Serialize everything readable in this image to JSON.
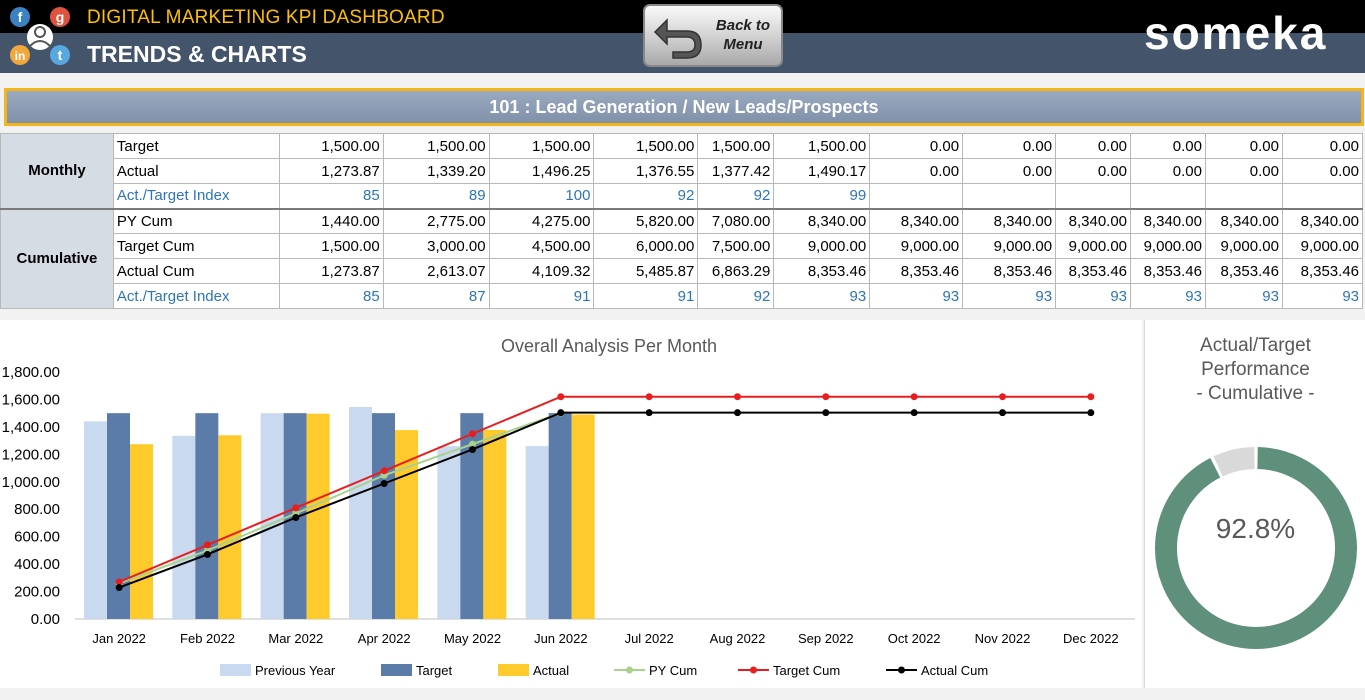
{
  "header": {
    "app_title": "DIGITAL MARKETING KPI DASHBOARD",
    "page_title": "TRENDS & CHARTS",
    "back_button": "Back to\nMenu",
    "brand": "someka",
    "logo_letters": [
      "f",
      "g",
      "in",
      "t"
    ]
  },
  "kpi_selector": "101 : Lead Generation / New Leads/Prospects",
  "table": {
    "groups": [
      "Monthly",
      "Cumulative"
    ],
    "monthly": [
      {
        "label": "Target",
        "values": [
          "1,500.00",
          "1,500.00",
          "1,500.00",
          "1,500.00",
          "1,500.00",
          "1,500.00",
          "0.00",
          "0.00",
          "0.00",
          "0.00",
          "0.00",
          "0.00"
        ]
      },
      {
        "label": "Actual",
        "values": [
          "1,273.87",
          "1,339.20",
          "1,496.25",
          "1,376.55",
          "1,377.42",
          "1,490.17",
          "0.00",
          "0.00",
          "0.00",
          "0.00",
          "0.00",
          "0.00"
        ]
      },
      {
        "label": "Act./Target Index",
        "values": [
          "85",
          "89",
          "100",
          "92",
          "92",
          "99",
          "",
          "",
          "",
          "",
          "",
          ""
        ]
      }
    ],
    "cumulative": [
      {
        "label": "PY Cum",
        "values": [
          "1,440.00",
          "2,775.00",
          "4,275.00",
          "5,820.00",
          "7,080.00",
          "8,340.00",
          "8,340.00",
          "8,340.00",
          "8,340.00",
          "8,340.00",
          "8,340.00",
          "8,340.00"
        ]
      },
      {
        "label": "Target Cum",
        "values": [
          "1,500.00",
          "3,000.00",
          "4,500.00",
          "6,000.00",
          "7,500.00",
          "9,000.00",
          "9,000.00",
          "9,000.00",
          "9,000.00",
          "9,000.00",
          "9,000.00",
          "9,000.00"
        ]
      },
      {
        "label": "Actual Cum",
        "values": [
          "1,273.87",
          "2,613.07",
          "4,109.32",
          "5,485.87",
          "6,863.29",
          "8,353.46",
          "8,353.46",
          "8,353.46",
          "8,353.46",
          "8,353.46",
          "8,353.46",
          "8,353.46"
        ]
      },
      {
        "label": "Act./Target Index",
        "values": [
          "85",
          "87",
          "91",
          "91",
          "92",
          "93",
          "93",
          "93",
          "93",
          "93",
          "93",
          "93"
        ]
      }
    ]
  },
  "chart_data": [
    {
      "type": "bar",
      "title": "Overall Analysis Per Month",
      "categories": [
        "Jan 2022",
        "Feb 2022",
        "Mar 2022",
        "Apr 2022",
        "May 2022",
        "Jun 2022",
        "Jul 2022",
        "Aug 2022",
        "Sep 2022",
        "Oct 2022",
        "Nov 2022",
        "Dec 2022"
      ],
      "ylim": [
        0,
        1800
      ],
      "yticks": [
        "0.00",
        "200.00",
        "400.00",
        "600.00",
        "800.00",
        "1,000.00",
        "1,200.00",
        "1,400.00",
        "1,600.00",
        "1,800.00"
      ],
      "series": [
        {
          "name": "Previous Year",
          "kind": "bar",
          "color": "#c9daf0",
          "values": [
            1440,
            1335,
            1500,
            1545,
            1260,
            1260,
            0,
            0,
            0,
            0,
            0,
            0
          ]
        },
        {
          "name": "Target",
          "kind": "bar",
          "color": "#5b7ba8",
          "values": [
            1500,
            1500,
            1500,
            1500,
            1500,
            1500,
            0,
            0,
            0,
            0,
            0,
            0
          ]
        },
        {
          "name": "Actual",
          "kind": "bar",
          "color": "#ffca2c",
          "values": [
            1273.87,
            1339.2,
            1496.25,
            1376.55,
            1377.42,
            1490.17,
            0,
            0,
            0,
            0,
            0,
            0
          ]
        },
        {
          "name": "PY Cum",
          "kind": "line",
          "color": "#a9d18e",
          "values": [
            1440,
            2775,
            4275,
            5820,
            7080,
            8340,
            8340,
            8340,
            8340,
            8340,
            8340,
            8340
          ]
        },
        {
          "name": "Target Cum",
          "kind": "line",
          "color": "#e81e1e",
          "values": [
            1500,
            3000,
            4500,
            6000,
            7500,
            9000,
            9000,
            9000,
            9000,
            9000,
            9000,
            9000
          ]
        },
        {
          "name": "Actual Cum",
          "kind": "line",
          "color": "#000000",
          "values": [
            1273.87,
            2613.07,
            4109.32,
            5485.87,
            6863.29,
            8353.46,
            8353.46,
            8353.46,
            8353.46,
            8353.46,
            8353.46,
            8353.46
          ]
        }
      ],
      "secondary_axis_max": 10000,
      "legend": "bottom"
    },
    {
      "type": "pie",
      "title": "Actual/Target Performance\n- Cumulative -",
      "values": [
        92.8,
        7.2
      ],
      "colors": [
        "#5e907b",
        "#d9d9d9"
      ],
      "label": "92.8%"
    }
  ]
}
